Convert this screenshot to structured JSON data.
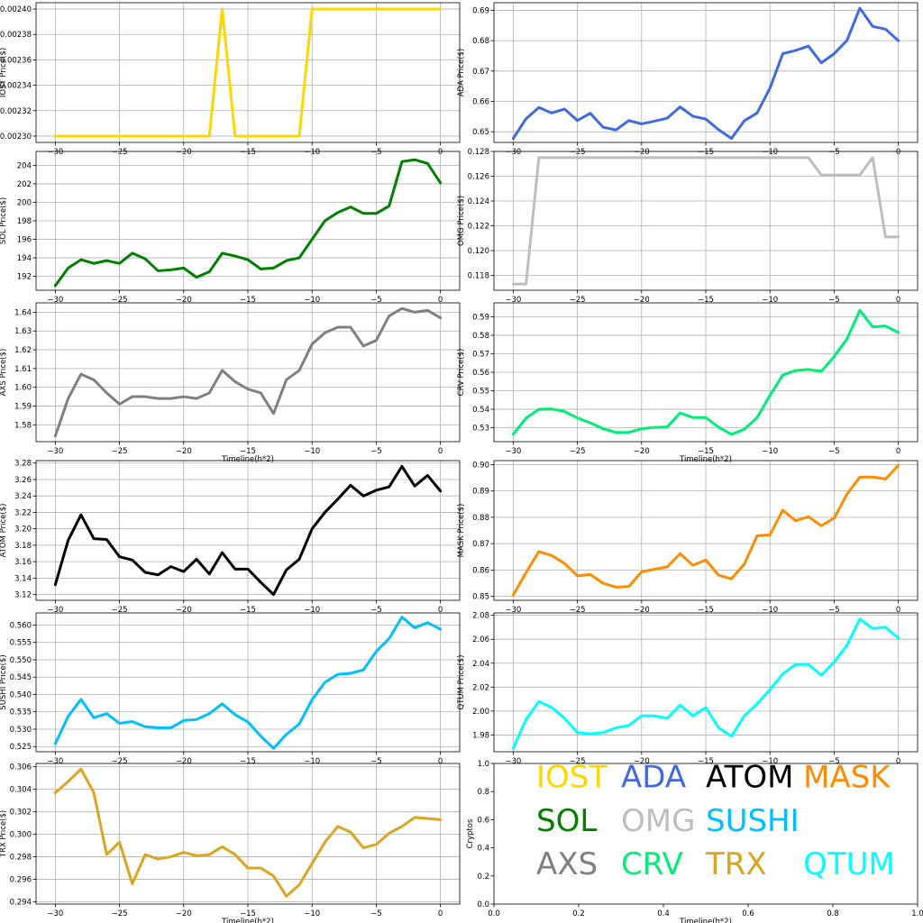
{
  "chart_data": [
    {
      "type": "line",
      "ylabel": "IOST Price($)",
      "xlabel": "",
      "color": "#FFD700",
      "x": [
        -30,
        -29,
        -28,
        -27,
        -26,
        -25,
        -24,
        -23,
        -22,
        -21,
        -20,
        -19,
        -18,
        -17,
        -16,
        -15,
        -14,
        -13,
        -12,
        -11,
        -10,
        -9,
        -8,
        -7,
        -6,
        -5,
        -4,
        -3,
        -2,
        -1,
        0
      ],
      "values": [
        0.0023,
        0.0023,
        0.0023,
        0.0023,
        0.0023,
        0.0023,
        0.0023,
        0.0023,
        0.0023,
        0.0023,
        0.0023,
        0.0023,
        0.0023,
        0.0024,
        0.0023,
        0.0023,
        0.0023,
        0.0023,
        0.0023,
        0.0023,
        0.0024,
        0.0024,
        0.0024,
        0.0024,
        0.0024,
        0.0024,
        0.0024,
        0.0024,
        0.0024,
        0.0024,
        0.0024
      ],
      "ylim": [
        0.002295,
        0.002405
      ],
      "yticks": [
        "0.00230",
        "0.00232",
        "0.00234",
        "0.00236",
        "0.00238",
        "0.00240"
      ],
      "ytick_values": [
        0.0023,
        0.00232,
        0.00234,
        0.00236,
        0.00238,
        0.0024
      ],
      "xticks": [
        "−30",
        "−25",
        "−20",
        "−15",
        "−10",
        "−5",
        "0"
      ],
      "xtick_values": [
        -30,
        -25,
        -20,
        -15,
        -10,
        -5,
        0
      ]
    },
    {
      "type": "line",
      "ylabel": "ADA  Price($)",
      "xlabel": "",
      "color": "#4169E1",
      "x": [
        -30,
        -29,
        -28,
        -27,
        -26,
        -25,
        -24,
        -23,
        -22,
        -21,
        -20,
        -19,
        -18,
        -17,
        -16,
        -15,
        -14,
        -13,
        -12,
        -11,
        -10,
        -9,
        -8,
        -7,
        -6,
        -5,
        -4,
        -3,
        -2,
        -1,
        0
      ],
      "values": [
        0.6478,
        0.6543,
        0.658,
        0.6562,
        0.6575,
        0.6537,
        0.6561,
        0.6515,
        0.6506,
        0.6537,
        0.6526,
        0.6535,
        0.6545,
        0.6582,
        0.6551,
        0.6542,
        0.6507,
        0.6478,
        0.6536,
        0.6562,
        0.6644,
        0.6757,
        0.6768,
        0.6782,
        0.6727,
        0.6757,
        0.6801,
        0.6907,
        0.6847,
        0.6838,
        0.68
      ],
      "ylim": [
        0.6465,
        0.6925
      ],
      "yticks": [
        "0.65",
        "0.66",
        "0.67",
        "0.68",
        "0.69"
      ],
      "ytick_values": [
        0.65,
        0.66,
        0.67,
        0.68,
        0.69
      ],
      "xticks": [
        "−30",
        "−25",
        "−20",
        "−15",
        "−10",
        "−5",
        "0"
      ],
      "xtick_values": [
        -30,
        -25,
        -20,
        -15,
        -10,
        -5,
        0
      ]
    },
    {
      "type": "line",
      "ylabel": "SOL Price($)",
      "xlabel": "",
      "color": "#008000",
      "x": [
        -30,
        -29,
        -28,
        -27,
        -26,
        -25,
        -24,
        -23,
        -22,
        -21,
        -20,
        -19,
        -18,
        -17,
        -16,
        -15,
        -14,
        -13,
        -12,
        -11,
        -10,
        -9,
        -8,
        -7,
        -6,
        -5,
        -4,
        -3,
        -2,
        -1,
        0
      ],
      "values": [
        191.0,
        192.9,
        193.8,
        193.4,
        193.7,
        193.4,
        194.5,
        193.9,
        192.6,
        192.7,
        192.9,
        191.9,
        192.5,
        194.5,
        194.2,
        193.8,
        192.8,
        192.9,
        193.7,
        194.0,
        196.0,
        198.0,
        198.9,
        199.5,
        198.8,
        198.8,
        199.6,
        204.4,
        204.6,
        204.2,
        202.1
      ],
      "ylim": [
        190.5,
        205.5
      ],
      "yticks": [
        "192",
        "194",
        "196",
        "198",
        "200",
        "202",
        "204"
      ],
      "ytick_values": [
        192,
        194,
        196,
        198,
        200,
        202,
        204
      ],
      "xticks": [
        "−30",
        "−25",
        "−20",
        "−15",
        "−10",
        "−5",
        "0"
      ],
      "xtick_values": [
        -30,
        -25,
        -20,
        -15,
        -10,
        -5,
        0
      ]
    },
    {
      "type": "line",
      "ylabel": "OMG  Price($)",
      "xlabel": "",
      "color": "#BEBEBE",
      "x": [
        -30,
        -29,
        -28,
        -27,
        -26,
        -25,
        -24,
        -23,
        -22,
        -21,
        -20,
        -19,
        -18,
        -17,
        -16,
        -15,
        -14,
        -13,
        -12,
        -11,
        -10,
        -9,
        -8,
        -7,
        -6,
        -5,
        -4,
        -3,
        -2,
        -1,
        0
      ],
      "values": [
        0.1173,
        0.1173,
        0.1275,
        0.1275,
        0.1275,
        0.1275,
        0.1275,
        0.1275,
        0.1275,
        0.1275,
        0.1275,
        0.1275,
        0.1275,
        0.1275,
        0.1275,
        0.1275,
        0.1275,
        0.1275,
        0.1275,
        0.1275,
        0.1275,
        0.1275,
        0.1275,
        0.1275,
        0.1261,
        0.1261,
        0.1261,
        0.1261,
        0.1275,
        0.1211,
        0.1211
      ],
      "ylim": [
        0.1168,
        0.128
      ],
      "yticks": [
        "0.118",
        "0.120",
        "0.122",
        "0.124",
        "0.126",
        "0.128"
      ],
      "ytick_values": [
        0.118,
        0.12,
        0.122,
        0.124,
        0.126,
        0.128
      ],
      "xticks": [
        "−30",
        "−25",
        "−20",
        "−15",
        "−10",
        "−5",
        "0"
      ],
      "xtick_values": [
        -30,
        -25,
        -20,
        -15,
        -10,
        -5,
        0
      ]
    },
    {
      "type": "line",
      "ylabel": "AXS Price($)",
      "xlabel": "Timeline(h*2)",
      "color": "#808080",
      "x": [
        -30,
        -29,
        -28,
        -27,
        -26,
        -25,
        -24,
        -23,
        -22,
        -21,
        -20,
        -19,
        -18,
        -17,
        -16,
        -15,
        -14,
        -13,
        -12,
        -11,
        -10,
        -9,
        -8,
        -7,
        -6,
        -5,
        -4,
        -3,
        -2,
        -1,
        0
      ],
      "values": [
        1.574,
        1.594,
        1.607,
        1.604,
        1.597,
        1.591,
        1.595,
        1.595,
        1.594,
        1.594,
        1.595,
        1.594,
        1.597,
        1.609,
        1.603,
        1.599,
        1.597,
        1.586,
        1.604,
        1.609,
        1.623,
        1.629,
        1.632,
        1.632,
        1.622,
        1.625,
        1.638,
        1.642,
        1.64,
        1.641,
        1.637
      ],
      "ylim": [
        1.571,
        1.645
      ],
      "yticks": [
        "1.58",
        "1.59",
        "1.60",
        "1.61",
        "1.62",
        "1.63",
        "1.64"
      ],
      "ytick_values": [
        1.58,
        1.59,
        1.6,
        1.61,
        1.62,
        1.63,
        1.64
      ],
      "xticks": [
        "−30",
        "−25",
        "−20",
        "−15",
        "−10",
        "−5",
        "0"
      ],
      "xtick_values": [
        -30,
        -25,
        -20,
        -15,
        -10,
        -5,
        0
      ]
    },
    {
      "type": "line",
      "ylabel": "CRV  Price($)",
      "xlabel": "Timeline(h*2)",
      "color": "#00EE76",
      "x": [
        -30,
        -29,
        -28,
        -27,
        -26,
        -25,
        -24,
        -23,
        -22,
        -21,
        -20,
        -19,
        -18,
        -17,
        -16,
        -15,
        -14,
        -13,
        -12,
        -11,
        -10,
        -9,
        -8,
        -7,
        -6,
        -5,
        -4,
        -3,
        -2,
        -1,
        0
      ],
      "values": [
        0.5265,
        0.5352,
        0.54,
        0.5402,
        0.5388,
        0.5353,
        0.5327,
        0.5295,
        0.5275,
        0.5275,
        0.5295,
        0.5302,
        0.5305,
        0.538,
        0.5355,
        0.5355,
        0.5303,
        0.5265,
        0.5292,
        0.5355,
        0.5475,
        0.5585,
        0.561,
        0.5615,
        0.5605,
        0.5685,
        0.578,
        0.5935,
        0.5845,
        0.585,
        0.5815
      ],
      "ylim": [
        0.5225,
        0.5975
      ],
      "yticks": [
        "0.53",
        "0.54",
        "0.55",
        "0.56",
        "0.57",
        "0.58",
        "0.59"
      ],
      "ytick_values": [
        0.53,
        0.54,
        0.55,
        0.56,
        0.57,
        0.58,
        0.59
      ],
      "xticks": [
        "−30",
        "−25",
        "−20",
        "−15",
        "−10",
        "−5",
        "0"
      ],
      "xtick_values": [
        -30,
        -25,
        -20,
        -15,
        -10,
        -5,
        0
      ]
    },
    {
      "type": "line",
      "ylabel": "ATOM  Price($)",
      "xlabel": "",
      "color": "#000000",
      "x": [
        -30,
        -29,
        -28,
        -27,
        -26,
        -25,
        -24,
        -23,
        -22,
        -21,
        -20,
        -19,
        -18,
        -17,
        -16,
        -15,
        -14,
        -13,
        -12,
        -11,
        -10,
        -9,
        -8,
        -7,
        -6,
        -5,
        -4,
        -3,
        -2,
        -1,
        0
      ],
      "values": [
        3.132,
        3.186,
        3.217,
        3.188,
        3.187,
        3.166,
        3.162,
        3.147,
        3.144,
        3.154,
        3.148,
        3.163,
        3.145,
        3.171,
        3.151,
        3.151,
        3.135,
        3.12,
        3.15,
        3.163,
        3.2,
        3.22,
        3.236,
        3.253,
        3.24,
        3.247,
        3.251,
        3.276,
        3.252,
        3.265,
        3.246
      ],
      "ylim": [
        3.113,
        3.283
      ],
      "yticks": [
        "3.12",
        "3.14",
        "3.16",
        "3.18",
        "3.20",
        "3.22",
        "3.24",
        "3.26",
        "3.28"
      ],
      "ytick_values": [
        3.12,
        3.14,
        3.16,
        3.18,
        3.2,
        3.22,
        3.24,
        3.26,
        3.28
      ],
      "xticks": [
        "−30",
        "−25",
        "−20",
        "−15",
        "−10",
        "−5",
        "0"
      ],
      "xtick_values": [
        -30,
        -25,
        -20,
        -15,
        -10,
        -5,
        0
      ]
    },
    {
      "type": "line",
      "ylabel": "MASK  Price($)",
      "xlabel": "",
      "color": "#FF8C00",
      "x": [
        -30,
        -29,
        -28,
        -27,
        -26,
        -25,
        -24,
        -23,
        -22,
        -21,
        -20,
        -19,
        -18,
        -17,
        -16,
        -15,
        -14,
        -13,
        -12,
        -11,
        -10,
        -9,
        -8,
        -7,
        -6,
        -5,
        -4,
        -3,
        -2,
        -1,
        0
      ],
      "values": [
        0.8505,
        0.859,
        0.867,
        0.8655,
        0.8625,
        0.8578,
        0.8583,
        0.855,
        0.8535,
        0.8537,
        0.8593,
        0.8603,
        0.8612,
        0.8662,
        0.8618,
        0.8638,
        0.858,
        0.8567,
        0.8622,
        0.873,
        0.8733,
        0.8827,
        0.8787,
        0.8802,
        0.8768,
        0.8797,
        0.8888,
        0.8952,
        0.8953,
        0.8945,
        0.8997
      ],
      "ylim": [
        0.8485,
        0.9015
      ],
      "yticks": [
        "0.85",
        "0.86",
        "0.87",
        "0.88",
        "0.89",
        "0.90"
      ],
      "ytick_values": [
        0.85,
        0.86,
        0.87,
        0.88,
        0.89,
        0.9
      ],
      "xticks": [
        "−30",
        "−25",
        "−20",
        "−15",
        "−10",
        "−5",
        "0"
      ],
      "xtick_values": [
        -30,
        -25,
        -20,
        -15,
        -10,
        -5,
        0
      ]
    },
    {
      "type": "line",
      "ylabel": "SUSHI  Price($)",
      "xlabel": "",
      "color": "#00BFFF",
      "x": [
        -30,
        -29,
        -28,
        -27,
        -26,
        -25,
        -24,
        -23,
        -22,
        -21,
        -20,
        -19,
        -18,
        -17,
        -16,
        -15,
        -14,
        -13,
        -12,
        -11,
        -10,
        -9,
        -8,
        -7,
        -6,
        -5,
        -4,
        -3,
        -2,
        -1,
        0
      ],
      "values": [
        0.5258,
        0.5337,
        0.5386,
        0.5333,
        0.5345,
        0.5317,
        0.5322,
        0.5307,
        0.5304,
        0.5304,
        0.5325,
        0.5328,
        0.5345,
        0.5373,
        0.5342,
        0.5321,
        0.528,
        0.5245,
        0.5285,
        0.5315,
        0.5385,
        0.5435,
        0.5458,
        0.5461,
        0.5471,
        0.5524,
        0.5561,
        0.5623,
        0.5592,
        0.5607,
        0.5588
      ],
      "ylim": [
        0.5235,
        0.5635
      ],
      "yticks": [
        "0.525",
        "0.530",
        "0.535",
        "0.540",
        "0.545",
        "0.550",
        "0.555",
        "0.560"
      ],
      "ytick_values": [
        0.525,
        0.53,
        0.535,
        0.54,
        0.545,
        0.55,
        0.555,
        0.56
      ],
      "xticks": [
        "−30",
        "−25",
        "−20",
        "−15",
        "−10",
        "−5",
        "0"
      ],
      "xtick_values": [
        -30,
        -25,
        -20,
        -15,
        -10,
        -5,
        0
      ]
    },
    {
      "type": "line",
      "ylabel": "QTUM Price($)",
      "xlabel": "",
      "color": "#00FFFF",
      "x": [
        -30,
        -29,
        -28,
        -27,
        -26,
        -25,
        -24,
        -23,
        -22,
        -21,
        -20,
        -19,
        -18,
        -17,
        -16,
        -15,
        -14,
        -13,
        -12,
        -11,
        -10,
        -9,
        -8,
        -7,
        -6,
        -5,
        -4,
        -3,
        -2,
        -1,
        0
      ],
      "values": [
        1.969,
        1.993,
        2.008,
        2.003,
        1.994,
        1.982,
        1.981,
        1.982,
        1.986,
        1.988,
        1.996,
        1.996,
        1.994,
        2.005,
        1.996,
        2.003,
        1.986,
        1.979,
        1.996,
        2.006,
        2.018,
        2.031,
        2.039,
        2.039,
        2.03,
        2.041,
        2.055,
        2.077,
        2.069,
        2.07,
        2.061
      ],
      "ylim": [
        1.966,
        2.082
      ],
      "yticks": [
        "1.98",
        "2.00",
        "2.02",
        "2.04",
        "2.06",
        "2.08"
      ],
      "ytick_values": [
        1.98,
        2.0,
        2.02,
        2.04,
        2.06,
        2.08
      ],
      "xticks": [
        "−30",
        "−25",
        "−20",
        "−15",
        "−10",
        "−5",
        "0"
      ],
      "xtick_values": [
        -30,
        -25,
        -20,
        -15,
        -10,
        -5,
        0
      ]
    },
    {
      "type": "line",
      "ylabel": "TRX Price($)",
      "xlabel": "Timeline(h*2)",
      "color": "#DAA520",
      "x": [
        -30,
        -29,
        -28,
        -27,
        -26,
        -25,
        -24,
        -23,
        -22,
        -21,
        -20,
        -19,
        -18,
        -17,
        -16,
        -15,
        -14,
        -13,
        -12,
        -11,
        -10,
        -9,
        -8,
        -7,
        -6,
        -5,
        -4,
        -3,
        -2,
        -1,
        0
      ],
      "values": [
        0.3037,
        0.3047,
        0.3058,
        0.3037,
        0.2982,
        0.2993,
        0.2956,
        0.2982,
        0.2978,
        0.298,
        0.2984,
        0.2981,
        0.2982,
        0.2989,
        0.2982,
        0.297,
        0.297,
        0.2963,
        0.2945,
        0.2955,
        0.2974,
        0.2993,
        0.3007,
        0.3002,
        0.2988,
        0.2991,
        0.3001,
        0.3007,
        0.3015,
        0.3014,
        0.3013
      ],
      "ylim": [
        0.2938,
        0.3063
      ],
      "yticks": [
        "0.294",
        "0.296",
        "0.298",
        "0.300",
        "0.302",
        "0.304",
        "0.306"
      ],
      "ytick_values": [
        0.294,
        0.296,
        0.298,
        0.3,
        0.302,
        0.304,
        0.306
      ],
      "xticks": [
        "−30",
        "−25",
        "−20",
        "−15",
        "−10",
        "−5",
        "0"
      ],
      "xtick_values": [
        -30,
        -25,
        -20,
        -15,
        -10,
        -5,
        0
      ]
    },
    {
      "type": "legend",
      "ylabel": "Cryptos",
      "xlabel": "Timeline(h*2)",
      "xticks": [
        "0.0",
        "0.2",
        "0.4",
        "0.6",
        "0.8",
        "1.0"
      ],
      "xtick_values": [
        0,
        0.2,
        0.4,
        0.6,
        0.8,
        1.0
      ],
      "yticks": [
        "0.0",
        "0.2",
        "0.4",
        "0.6",
        "0.8",
        "1.0"
      ],
      "ytick_values": [
        0,
        0.2,
        0.4,
        0.6,
        0.8,
        1.0
      ],
      "labels": [
        {
          "text": "IOST",
          "color": "#FFD700"
        },
        {
          "text": "ADA",
          "color": "#4169E1"
        },
        {
          "text": "ATOM",
          "color": "#000000"
        },
        {
          "text": "MASK",
          "color": "#FF8C00"
        },
        {
          "text": "SOL",
          "color": "#008000"
        },
        {
          "text": "OMG",
          "color": "#BEBEBE"
        },
        {
          "text": "SUSHI",
          "color": "#00BFFF"
        },
        {
          "text": "AXS",
          "color": "#808080"
        },
        {
          "text": "CRV",
          "color": "#00EE76"
        },
        {
          "text": "TRX",
          "color": "#DAA520"
        },
        {
          "text": "QTUM",
          "color": "#00FFFF"
        }
      ]
    }
  ]
}
